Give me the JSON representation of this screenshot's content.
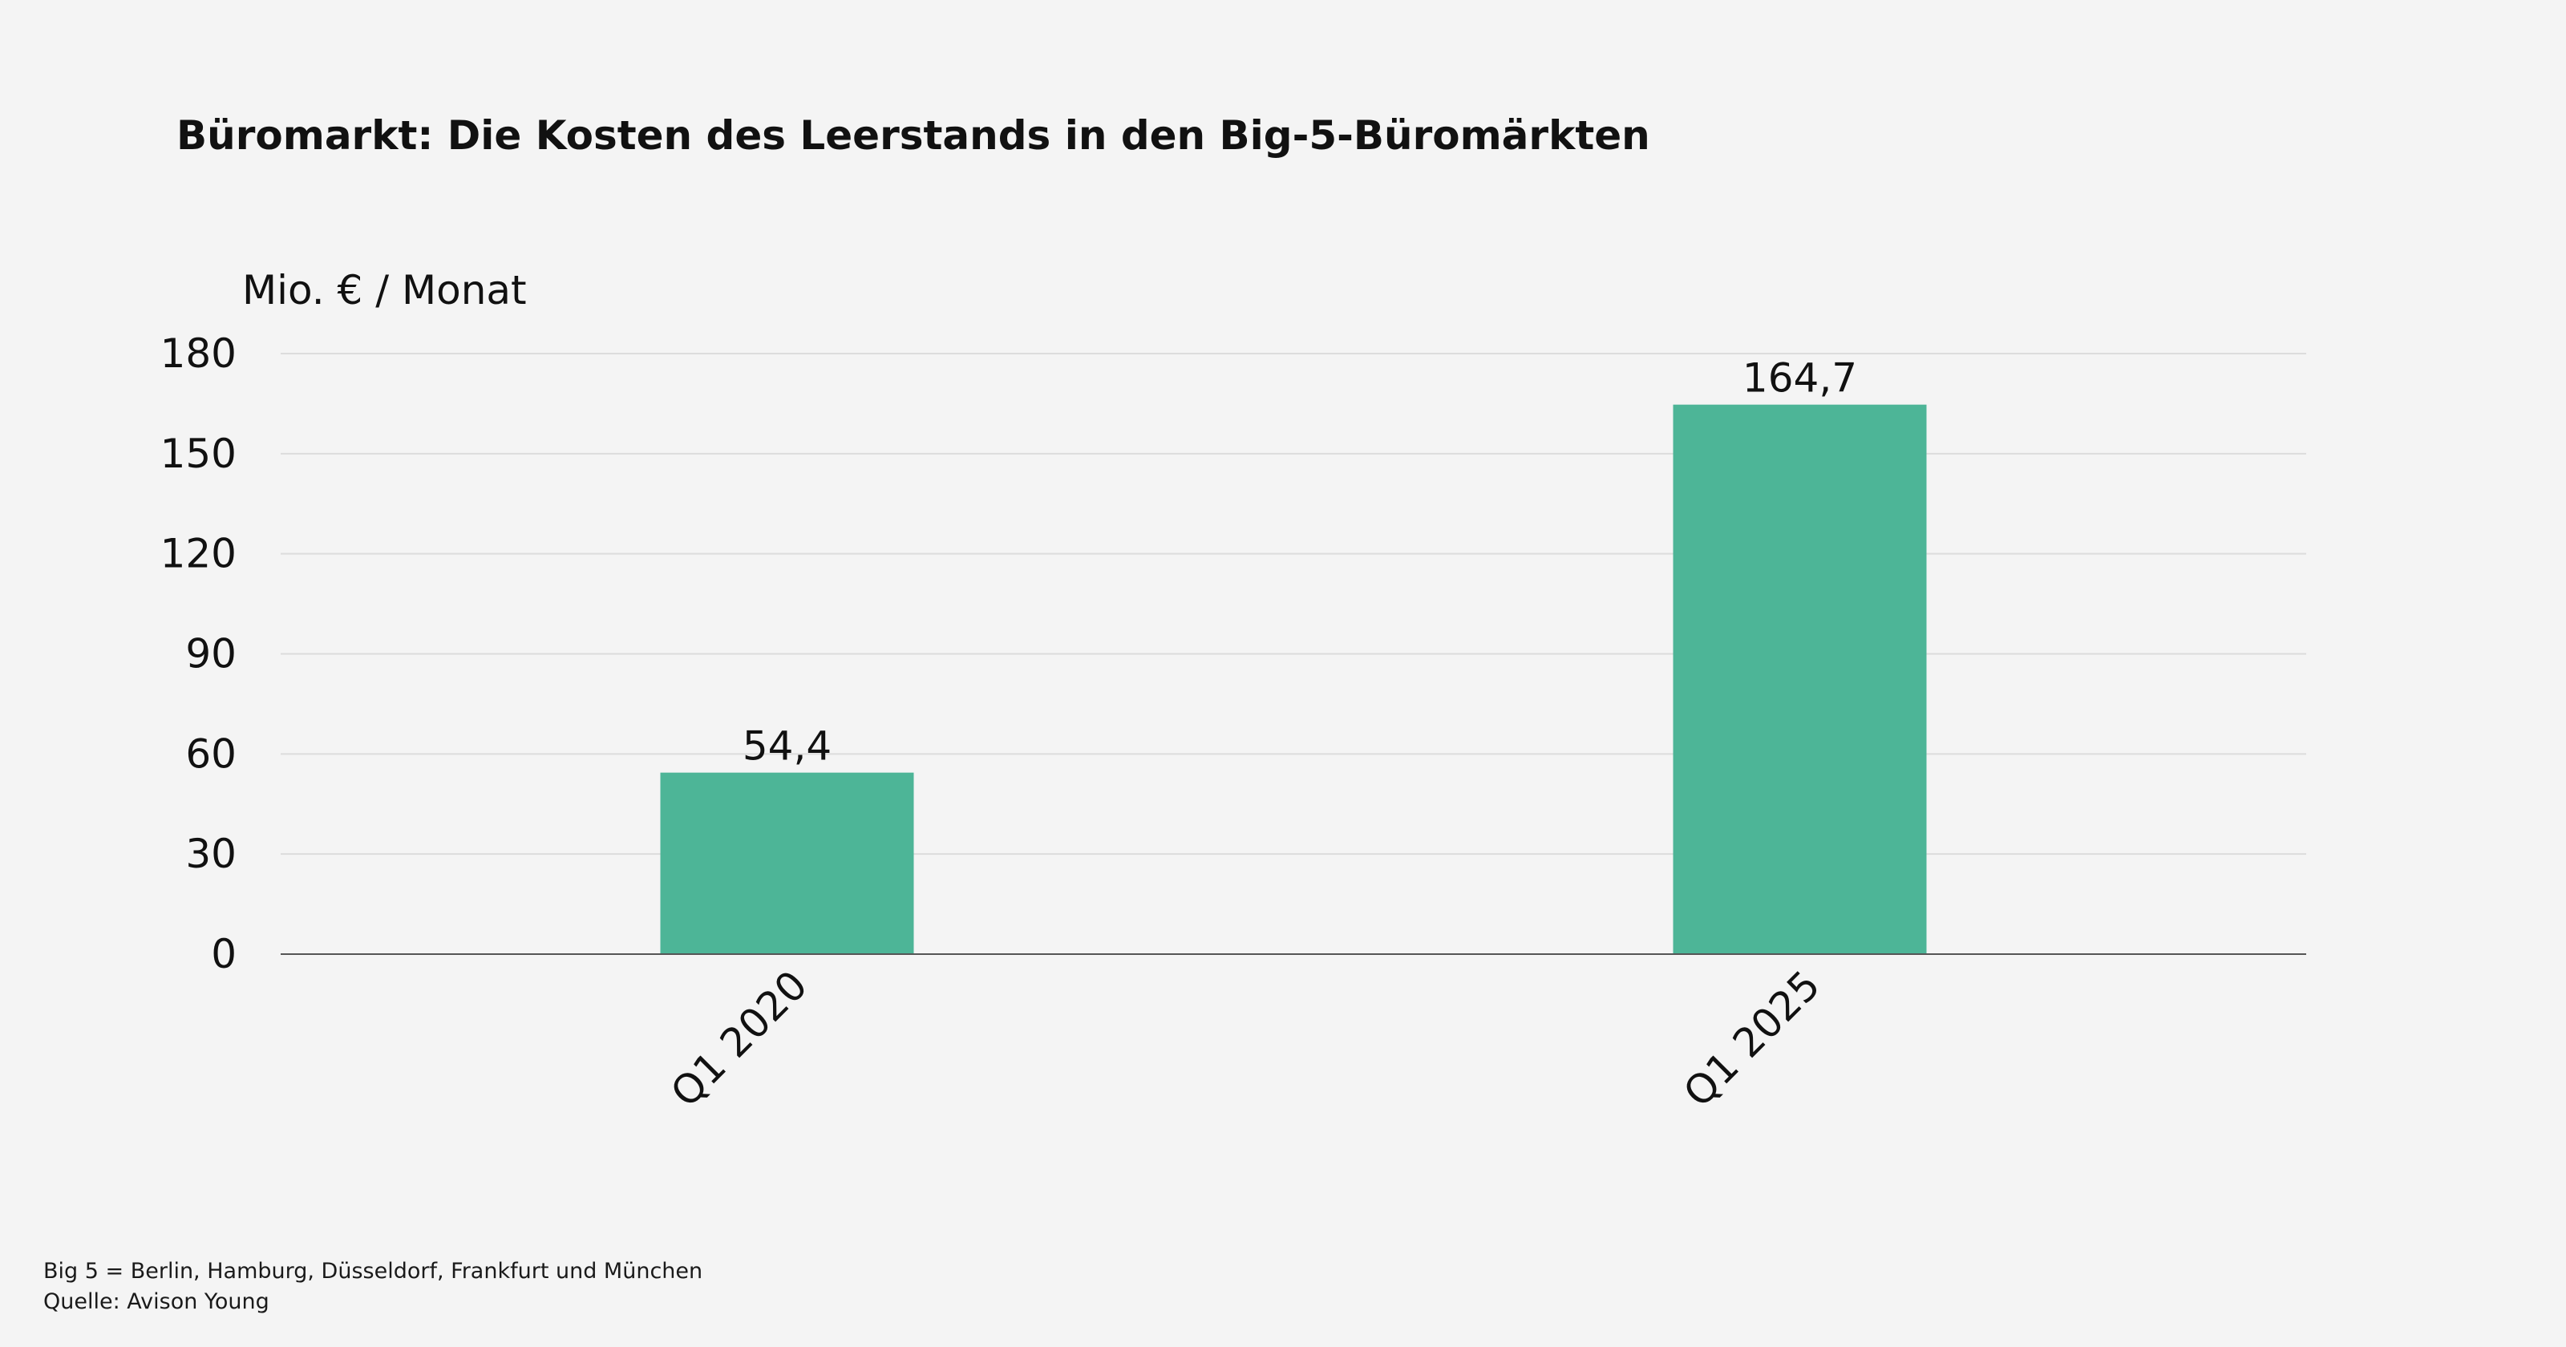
{
  "chart_data": {
    "type": "bar",
    "title": "Büromarkt: Die Kosten des Leerstands in den Big-5-Büromärkten",
    "ylabel": "Mio. € / Monat",
    "xlabel": "",
    "categories": [
      "Q1 2020",
      "Q1 2025"
    ],
    "values": [
      54.4,
      164.7
    ],
    "data_labels": [
      "54,4",
      "164,7"
    ],
    "ylim": [
      0,
      180
    ],
    "yticks": [
      0,
      30,
      60,
      90,
      120,
      150,
      180
    ],
    "grid": true,
    "bar_color": "#4db597",
    "grid_color": "#dcdcdc",
    "axis_color": "#555555"
  },
  "footnotes": {
    "line1": "Big 5 = Berlin, Hamburg, Düsseldorf, Frankfurt und München",
    "line2": "Quelle: Avison Young"
  }
}
